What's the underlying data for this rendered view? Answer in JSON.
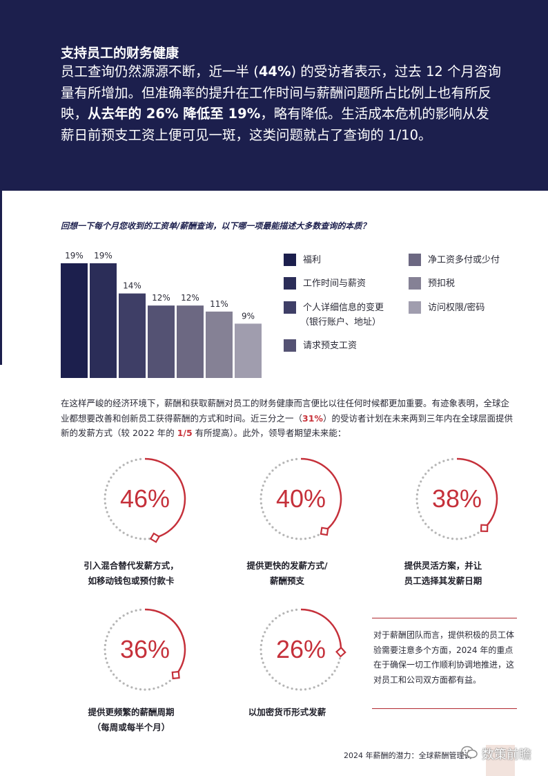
{
  "hero": {
    "title": "支持员工的财务健康",
    "body_1": "员工查询仍然源源不断，近一半 (",
    "body_2": "44%",
    "body_3": ") 的受访者表示，过去 12 个月咨询量有所增加。但准确率的提升在工作时间与薪酬问题所占比例上也有所反映，",
    "body_4": "从去年的 26% 降低至 19%",
    "body_5": "，略有降低。生活成本危机的影响从发薪日前预支工资上便可见一斑，这类问题就占了查询的 1/10。"
  },
  "question": "回想一下每个月您收到的工资单/薪酬查询，以下哪一项最能描述大多数查询的本质？",
  "chart_data": {
    "type": "bar",
    "categories": [
      "福利",
      "工作时间与薪资",
      "个人详细信息的变更（银行账户、地址）",
      "请求预支工资",
      "净工资多付或少付",
      "预扣税",
      "访问权限/密码"
    ],
    "values": [
      19,
      19,
      14,
      12,
      12,
      11,
      9
    ],
    "value_labels": [
      "19%",
      "19%",
      "14%",
      "12%",
      "12%",
      "11%",
      "9%"
    ],
    "colors": [
      "#1c1f4d",
      "#2b2d58",
      "#3e3e66",
      "#545273",
      "#6c6882",
      "#858195",
      "#a09dae"
    ],
    "title": "",
    "xlabel": "",
    "ylabel": "",
    "ylim": [
      0,
      19
    ],
    "grid": false,
    "legend_position": "right"
  },
  "legend": [
    {
      "label": "福利",
      "color": "#1c1f4d"
    },
    {
      "label": "工作时间与薪资",
      "color": "#2b2d58"
    },
    {
      "label": "个人详细信息的变更",
      "label2": "（银行账户、地址）",
      "color": "#3e3e66"
    },
    {
      "label": "请求预支工资",
      "color": "#545273"
    },
    {
      "label": "净工资多付或少付",
      "color": "#6c6882"
    },
    {
      "label": "预扣税",
      "color": "#858195"
    },
    {
      "label": "访问权限/密码",
      "color": "#a09dae"
    }
  ],
  "paragraph": {
    "p1": "在这样严峻的经济环境下，薪酬和获取薪酬对员工的财务健康而言便比以往任何时候都更加重要。有迹象表明，全球企业都想要改善和创新员工获得薪酬的方式和时间。近三分之一（",
    "p2": "31%",
    "p3": "）的受访者计划在未来两到三年内在全球层面提供新的发薪方式（较 2022 年的 ",
    "p4": "1/5",
    "p5": " 有所提高）。此外，领导者期望未来能："
  },
  "gauges": [
    {
      "value": 46,
      "label": "46%",
      "caption_1": "引入混合替代发薪方式，",
      "caption_2": "如移动钱包或预付款卡"
    },
    {
      "value": 40,
      "label": "40%",
      "caption_1": "提供更快的发薪方式/",
      "caption_2": "薪酬预支"
    },
    {
      "value": 38,
      "label": "38%",
      "caption_1": "提供灵活方案，并让",
      "caption_2": "员工选择其发薪日期"
    },
    {
      "value": 36,
      "label": "36%",
      "caption_1": "提供更频繁的薪酬周期",
      "caption_2": "（每周或每半个月）"
    },
    {
      "value": 26,
      "label": "26%",
      "caption_1": "以加密货币形式发薪",
      "caption_2": ""
    }
  ],
  "note": "对于薪酬团队而言，提供积极的员工体验需要注意多个方面，2024 年的重点在于确保一切工作顺利协调地推进，这对员工和公司双方面都有益。",
  "footer": {
    "title": "2024 年薪酬的潜力：全球薪酬管理调",
    "watermark": "数策前瞻"
  },
  "colors": {
    "navy": "#1c1f4d",
    "accent_red": "#c5303a",
    "dots_gray": "#b5b5b5"
  }
}
